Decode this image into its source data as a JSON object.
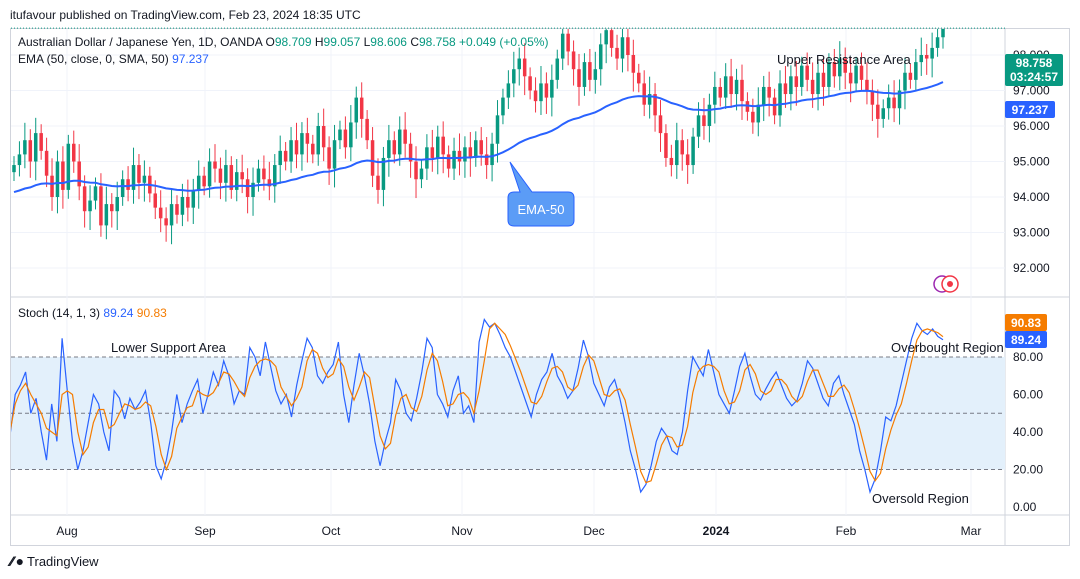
{
  "header": {
    "publisher": "itufavour published on TradingView.com, Feb 23, 2024 18:35 UTC"
  },
  "legend": {
    "symbol": "Australian Dollar / Japanese Yen, 1D, OANDA",
    "open_label": "O",
    "open": "98.709",
    "high_label": "H",
    "high": "99.057",
    "low_label": "L",
    "low": "98.606",
    "close_label": "C",
    "close": "98.758",
    "change": "+0.049 (+0.05%)",
    "ema_label": "EMA (50, close, 0, SMA, 50)",
    "ema_value": "97.237",
    "stoch_label": "Stoch (14, 1, 3)",
    "stoch_k": "89.24",
    "stoch_d": "90.83"
  },
  "annotations": {
    "upper_resistance": "Upper Resistance Area",
    "ema_callout": "EMA-50",
    "lower_support": "Lower Support Area",
    "overbought": "Overbought Region",
    "oversold": "Oversold Region"
  },
  "badges": {
    "price": "98.758",
    "countdown": "03:24:57",
    "ema": "97.237",
    "stoch_d": "90.83",
    "stoch_k": "89.24"
  },
  "footer": {
    "brand": "TradingView"
  },
  "colors": {
    "up": "#089981",
    "down": "#f23645",
    "ema": "#2962ff",
    "k": "#2962ff",
    "d": "#f57c00",
    "band": "#e3f0fb"
  },
  "chart_data": [
    {
      "type": "candlestick",
      "x_ticks": [
        "Aug",
        "Sep",
        "Oct",
        "Nov",
        "Dec",
        "2024",
        "Feb",
        "Mar"
      ],
      "y_ticks": [
        "98.000",
        "97.000",
        "96.000",
        "95.000",
        "94.000",
        "93.000",
        "92.000"
      ],
      "ylim": [
        91.5,
        99.3
      ],
      "series": [
        {
          "name": "AUD/JPY",
          "last": 98.758
        },
        {
          "name": "EMA (50, close, 0, SMA, 50)",
          "last": 97.237
        }
      ],
      "closes": [
        94.9,
        95.2,
        95.6,
        95.0,
        95.8,
        95.3,
        94.6,
        94.0,
        95.0,
        94.2,
        95.5,
        95.0,
        94.3,
        93.6,
        93.9,
        94.3,
        93.2,
        93.8,
        93.6,
        94.0,
        94.5,
        94.2,
        94.9,
        94.4,
        94.6,
        94.1,
        93.7,
        93.4,
        93.2,
        93.8,
        93.5,
        94.0,
        93.7,
        94.2,
        94.6,
        94.3,
        95.0,
        94.8,
        94.4,
        94.9,
        94.2,
        94.7,
        94.5,
        94.0,
        94.4,
        94.8,
        94.5,
        94.3,
        94.9,
        95.3,
        95.0,
        95.6,
        95.2,
        95.8,
        95.5,
        95.2,
        96.0,
        95.4,
        94.8,
        95.6,
        95.9,
        95.4,
        96.1,
        96.8,
        96.2,
        95.6,
        94.6,
        94.2,
        95.1,
        95.6,
        95.2,
        95.9,
        95.5,
        95.0,
        94.5,
        94.8,
        95.4,
        95.1,
        95.7,
        95.2,
        94.8,
        95.3,
        95.0,
        95.4,
        95.1,
        95.6,
        95.2,
        94.9,
        95.5,
        96.3,
        96.8,
        97.2,
        97.6,
        97.9,
        97.4,
        97.0,
        96.7,
        97.2,
        96.8,
        97.3,
        97.9,
        98.6,
        98.1,
        97.6,
        97.1,
        97.8,
        97.3,
        97.6,
        98.3,
        98.7,
        98.2,
        97.9,
        98.5,
        98.0,
        97.5,
        97.2,
        96.6,
        96.9,
        96.3,
        95.8,
        95.1,
        94.9,
        95.6,
        95.2,
        94.9,
        95.7,
        96.3,
        96.0,
        96.6,
        97.1,
        96.8,
        97.4,
        96.9,
        97.3,
        96.7,
        96.4,
        96.1,
        96.6,
        97.1,
        96.8,
        96.3,
        97.2,
        96.9,
        97.4,
        97.1,
        97.7,
        97.3,
        96.9,
        97.5,
        97.1,
        97.8,
        97.4,
        97.9,
        97.5,
        97.2,
        97.7,
        97.3,
        97.0,
        96.6,
        96.2,
        96.5,
        96.8,
        96.5,
        97.0,
        97.5,
        97.3,
        97.8,
        98.0,
        97.9,
        98.2,
        98.5,
        98.758
      ]
    },
    {
      "type": "line",
      "name": "Stoch (14, 1, 3)",
      "y_ticks": [
        "80.00",
        "60.00",
        "40.00",
        "20.00",
        "0.00"
      ],
      "ylim": [
        -5,
        103
      ],
      "k": [
        38,
        60,
        65,
        72,
        50,
        58,
        40,
        25,
        55,
        35,
        90,
        62,
        35,
        20,
        30,
        45,
        60,
        55,
        40,
        30,
        62,
        58,
        47,
        58,
        52,
        56,
        62,
        45,
        22,
        15,
        25,
        40,
        60,
        45,
        55,
        62,
        68,
        50,
        60,
        72,
        65,
        78,
        70,
        55,
        62,
        60,
        85,
        80,
        70,
        88,
        75,
        62,
        55,
        60,
        48,
        65,
        78,
        90,
        85,
        70,
        66,
        72,
        76,
        88,
        60,
        45,
        65,
        82,
        70,
        55,
        35,
        22,
        35,
        45,
        68,
        62,
        50,
        46,
        58,
        72,
        90,
        85,
        60,
        55,
        48,
        62,
        70,
        50,
        54,
        45,
        88,
        100,
        96,
        98,
        92,
        85,
        80,
        72,
        64,
        56,
        48,
        60,
        68,
        72,
        82,
        70,
        65,
        58,
        62,
        74,
        89,
        80,
        66,
        60,
        54,
        64,
        68,
        58,
        45,
        30,
        20,
        8,
        12,
        22,
        35,
        42,
        38,
        30,
        28,
        40,
        62,
        80,
        75,
        70,
        84,
        72,
        60,
        55,
        50,
        62,
        75,
        82,
        70,
        60,
        57,
        63,
        68,
        72,
        65,
        58,
        54,
        57,
        66,
        78,
        74,
        66,
        58,
        54,
        66,
        70,
        60,
        52,
        44,
        30,
        20,
        8,
        15,
        30,
        48,
        46,
        54,
        66,
        78,
        90,
        98,
        94,
        92,
        95,
        91,
        89.24
      ],
      "d": [
        40,
        55,
        62,
        66,
        60,
        55,
        50,
        42,
        40,
        38,
        60,
        62,
        60,
        40,
        28,
        32,
        45,
        52,
        52,
        42,
        44,
        50,
        55,
        54,
        52,
        53,
        56,
        54,
        43,
        28,
        20,
        27,
        42,
        48,
        53,
        54,
        62,
        60,
        59,
        61,
        66,
        72,
        71,
        67,
        62,
        59,
        69,
        75,
        78,
        79,
        78,
        75,
        64,
        59,
        54,
        58,
        64,
        78,
        84,
        82,
        74,
        69,
        71,
        79,
        75,
        64,
        57,
        64,
        72,
        69,
        53,
        38,
        31,
        34,
        49,
        58,
        60,
        53,
        51,
        59,
        73,
        82,
        78,
        67,
        54,
        55,
        60,
        61,
        58,
        50,
        62,
        78,
        95,
        98,
        95,
        92,
        86,
        79,
        72,
        64,
        56,
        55,
        59,
        67,
        74,
        75,
        72,
        64,
        62,
        65,
        75,
        81,
        78,
        69,
        60,
        59,
        62,
        63,
        57,
        44,
        32,
        19,
        13,
        14,
        23,
        33,
        38,
        37,
        32,
        33,
        43,
        61,
        72,
        75,
        76,
        75,
        72,
        62,
        55,
        56,
        62,
        73,
        76,
        71,
        62,
        60,
        62,
        68,
        68,
        65,
        59,
        56,
        59,
        67,
        73,
        73,
        66,
        59,
        59,
        63,
        65,
        61,
        52,
        42,
        31,
        19,
        14,
        18,
        31,
        41,
        49,
        55,
        66,
        78,
        89,
        94,
        95,
        94,
        93,
        90.83
      ]
    }
  ]
}
